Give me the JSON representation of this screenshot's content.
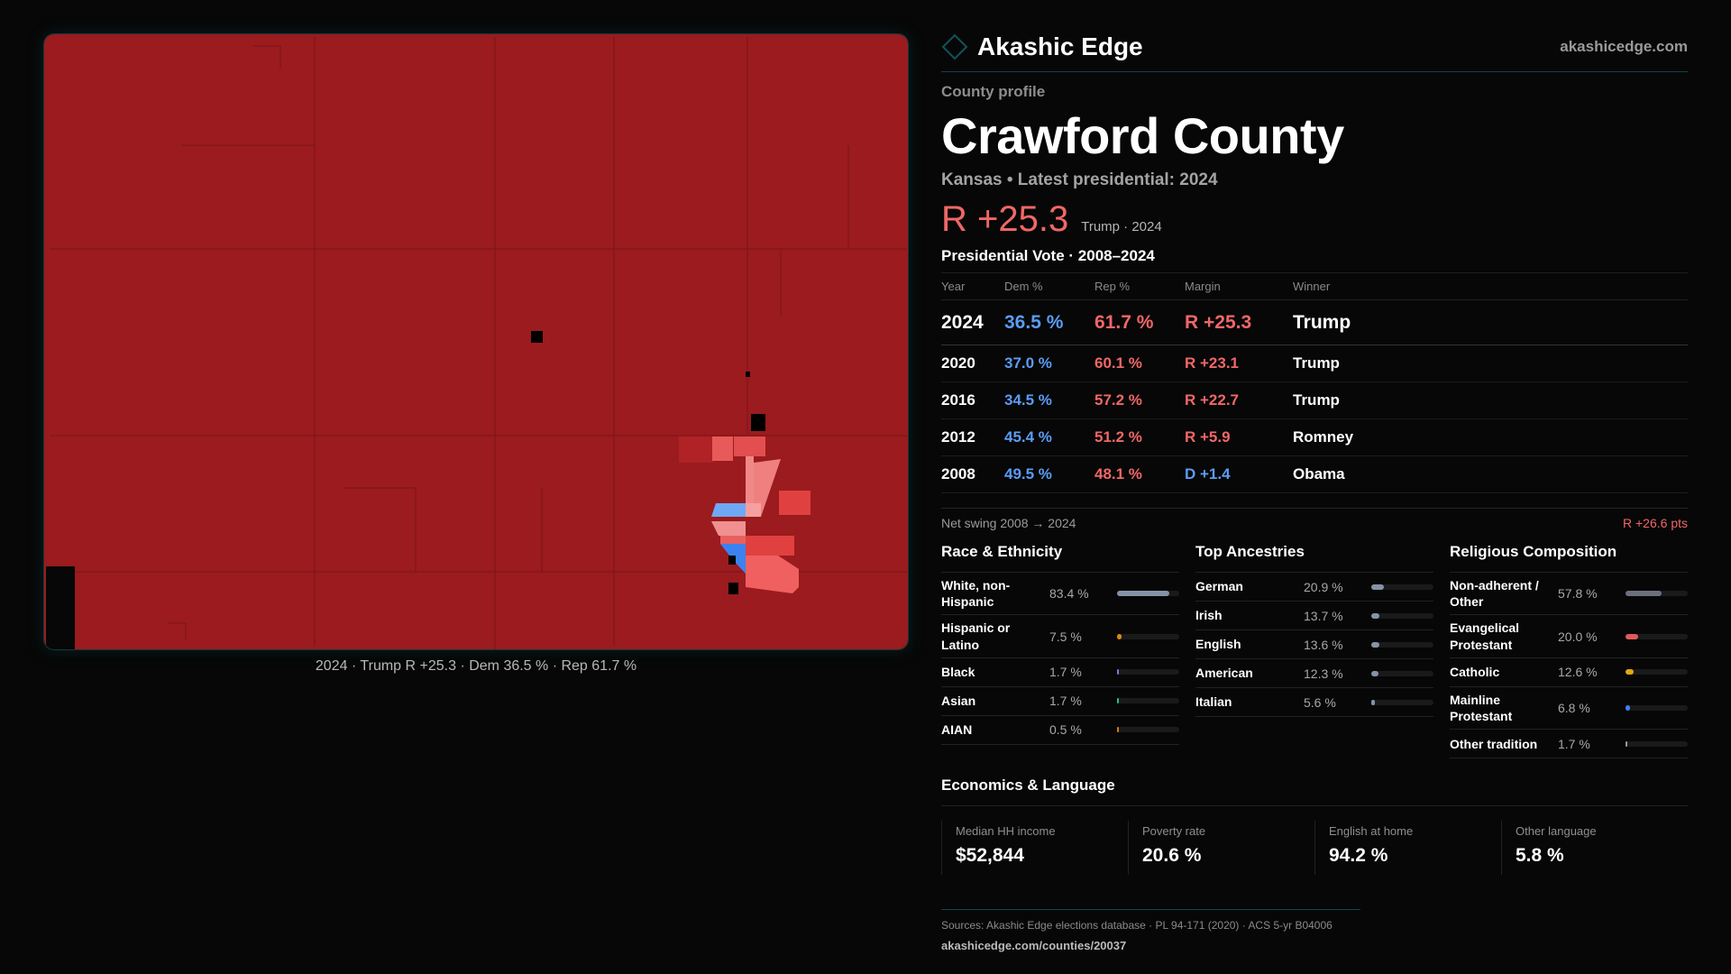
{
  "brand": {
    "name": "Akashic Edge",
    "site": "akashicedge.com",
    "accent": "#12424a"
  },
  "profile": {
    "eyebrow": "County profile",
    "title": "Crawford County",
    "subtitle": "Kansas • Latest presidential: 2024",
    "margin": "R +25.3",
    "margin_sub": "Trump · 2024"
  },
  "votes": {
    "title": "Presidential Vote · 2008–2024",
    "headers": [
      "Year",
      "Dem %",
      "Rep %",
      "Margin",
      "Winner"
    ],
    "rows": [
      {
        "year": "2024",
        "dem": "36.5 %",
        "rep": "61.7 %",
        "margin": "R +25.3",
        "party": "rep",
        "winner": "Trump"
      },
      {
        "year": "2020",
        "dem": "37.0 %",
        "rep": "60.1 %",
        "margin": "R +23.1",
        "party": "rep",
        "winner": "Trump"
      },
      {
        "year": "2016",
        "dem": "34.5 %",
        "rep": "57.2 %",
        "margin": "R +22.7",
        "party": "rep",
        "winner": "Trump"
      },
      {
        "year": "2012",
        "dem": "45.4 %",
        "rep": "51.2 %",
        "margin": "R +5.9",
        "party": "rep",
        "winner": "Romney"
      },
      {
        "year": "2008",
        "dem": "49.5 %",
        "rep": "48.1 %",
        "margin": "D +1.4",
        "party": "dem",
        "winner": "Obama"
      }
    ],
    "swing_label": "Net swing 2008 → 2024",
    "swing_value": "R +26.6 pts"
  },
  "race": {
    "title": "Race & Ethnicity",
    "items": [
      {
        "label": "White, non-Hispanic",
        "pct": "83.4 %",
        "value": 83.4,
        "color": "#8593a8"
      },
      {
        "label": "Hispanic or Latino",
        "pct": "7.5 %",
        "value": 7.5,
        "color": "#d98a10"
      },
      {
        "label": "Black",
        "pct": "1.7 %",
        "value": 1.7,
        "color": "#8a6ee8"
      },
      {
        "label": "Asian",
        "pct": "1.7 %",
        "value": 1.7,
        "color": "#22c08a"
      },
      {
        "label": "AIAN",
        "pct": "0.5 %",
        "value": 0.5,
        "color": "#d07a20"
      }
    ]
  },
  "ancestry": {
    "title": "Top Ancestries",
    "items": [
      {
        "label": "German",
        "pct": "20.9 %",
        "value": 20.9,
        "color": "#8593a8"
      },
      {
        "label": "Irish",
        "pct": "13.7 %",
        "value": 13.7,
        "color": "#8593a8"
      },
      {
        "label": "English",
        "pct": "13.6 %",
        "value": 13.6,
        "color": "#8593a8"
      },
      {
        "label": "American",
        "pct": "12.3 %",
        "value": 12.3,
        "color": "#8593a8"
      },
      {
        "label": "Italian",
        "pct": "5.6 %",
        "value": 5.6,
        "color": "#8593a8"
      }
    ]
  },
  "religion": {
    "title": "Religious Composition",
    "items": [
      {
        "label": "Non-adherent / Other",
        "pct": "57.8 %",
        "value": 57.8,
        "color": "#6b6f7c"
      },
      {
        "label": "Evangelical Protestant",
        "pct": "20.0 %",
        "value": 20.0,
        "color": "#e05a5a"
      },
      {
        "label": "Catholic",
        "pct": "12.6 %",
        "value": 12.6,
        "color": "#e0a810"
      },
      {
        "label": "Mainline Protestant",
        "pct": "6.8 %",
        "value": 6.8,
        "color": "#3b82f0"
      },
      {
        "label": "Other tradition",
        "pct": "1.7 %",
        "value": 1.7,
        "color": "#9a9a9a"
      }
    ]
  },
  "econ": {
    "title": "Economics & Language",
    "items": [
      {
        "label": "Median HH income",
        "value": "$52,844"
      },
      {
        "label": "Poverty rate",
        "value": "20.6 %"
      },
      {
        "label": "English at home",
        "value": "94.2 %"
      },
      {
        "label": "Other language",
        "value": "5.8 %"
      }
    ]
  },
  "footer": {
    "sources": "Sources: Akashic Edge elections database · PL 94-171 (2020) · ACS 5-yr B04006",
    "url": "akashicedge.com/counties/20037"
  },
  "map": {
    "caption": "2024 · Trump R +25.3 · Dem 36.5 % · Rep 61.7 %",
    "colors": {
      "base": "#9b1b1e",
      "strong_rep": "#b02226",
      "lean_rep": "#f08888",
      "dem": "#3b82f0",
      "lean_dem": "#6fa8f5"
    }
  }
}
